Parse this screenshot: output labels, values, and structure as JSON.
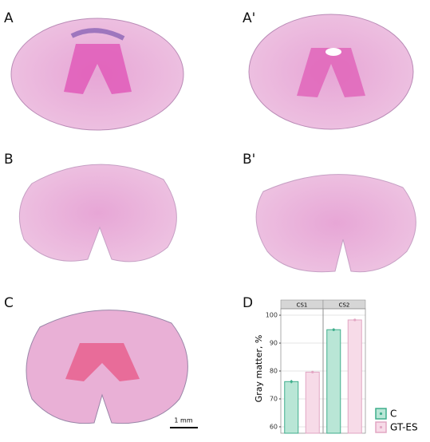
{
  "panels": [
    "A",
    "A'",
    "B",
    "B'",
    "C",
    "D"
  ],
  "scale_bar": "1 mm",
  "chart_data": {
    "type": "bar",
    "ylabel": "Gray matter, %",
    "categories": [
      "CS1",
      "CS2"
    ],
    "series": [
      {
        "name": "C",
        "color": "#b9e6d6",
        "stroke": "#3fae8c",
        "values": [
          76.2,
          94.8
        ],
        "errors": [
          0.6,
          0.5
        ]
      },
      {
        "name": "GT-ES",
        "color": "#f7dbe8",
        "stroke": "#e2a6c3",
        "values": [
          79.6,
          98.3
        ],
        "errors": [
          0.4,
          0.4
        ]
      }
    ],
    "ylim": [
      57.7,
      102.3
    ],
    "yticks": [
      60,
      70,
      80,
      90,
      100
    ],
    "grid": true
  }
}
